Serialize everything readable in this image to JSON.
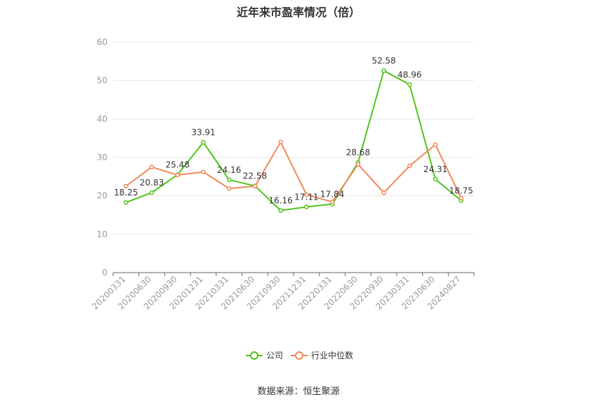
{
  "chart_data": {
    "type": "line",
    "title": "近年来市盈率情况（倍）",
    "categories": [
      "20200331",
      "20200630",
      "20200930",
      "20201231",
      "20210331",
      "20210630",
      "20210930",
      "20211231",
      "20220331",
      "20220630",
      "20220930",
      "20230331",
      "20230630",
      "20240827"
    ],
    "series": [
      {
        "name": "公司",
        "color": "#52c41a",
        "values": [
          18.25,
          20.83,
          25.48,
          33.91,
          24.16,
          22.58,
          16.16,
          17.11,
          17.84,
          28.68,
          52.58,
          48.96,
          24.31,
          18.75
        ],
        "labels": [
          "18.25",
          "20.83",
          "25.48",
          "33.91",
          "24.16",
          "22.58",
          "16.16",
          "17.11",
          "17.84",
          "28.68",
          "52.58",
          "48.96",
          "24.31",
          "18.75"
        ]
      },
      {
        "name": "行业中位数",
        "color": "#f0895a",
        "values": [
          22.5,
          27.5,
          25.4,
          26.2,
          21.9,
          22.5,
          34.0,
          20.3,
          18.4,
          28.2,
          20.8,
          27.8,
          33.3,
          19.4
        ]
      }
    ],
    "ylim": [
      0,
      60
    ],
    "yticks": [
      "0",
      "10",
      "20",
      "30",
      "40",
      "50",
      "60"
    ],
    "grid": true,
    "legend_position": "bottom"
  },
  "source": "数据来源：恒生聚源"
}
